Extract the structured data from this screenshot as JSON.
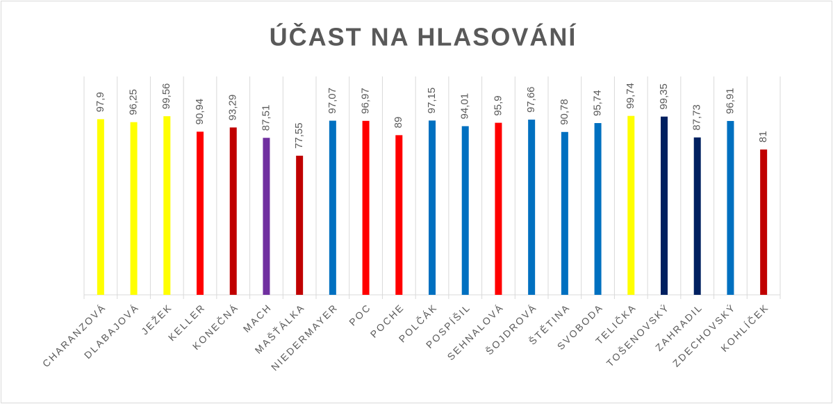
{
  "chart_data": {
    "type": "bar",
    "title": "ÚČAST NA HLASOVÁNÍ",
    "categories": [
      "CHARANZOVÁ",
      "DLABAJOVÁ",
      "JEŽEK",
      "KELLER",
      "KONEČNÁ",
      "MACH",
      "MAŠŤÁLKA",
      "NIEDERMAYER",
      "POC",
      "POCHE",
      "POLČÁK",
      "POSPÍŠIL",
      "SEHNALOVÁ",
      "ŠOJDROVÁ",
      "ŠTĚTINA",
      "SVOBODA",
      "TELIČKA",
      "TOŠENOVSKÝ",
      "ZAHRADIL",
      "ZDECHOVSKÝ",
      "KOHLÍČEK"
    ],
    "values": [
      97.9,
      96.25,
      99.56,
      90.94,
      93.29,
      87.51,
      77.55,
      97.07,
      96.97,
      89,
      97.15,
      94.01,
      95.9,
      97.66,
      90.78,
      95.74,
      99.74,
      99.35,
      87.73,
      96.91,
      81
    ],
    "value_labels": [
      "97,9",
      "96,25",
      "99,56",
      "90,94",
      "93,29",
      "87,51",
      "77,55",
      "97,07",
      "96,97",
      "89",
      "97,15",
      "94,01",
      "95,9",
      "97,66",
      "90,78",
      "95,74",
      "99,74",
      "99,35",
      "87,73",
      "96,91",
      "81"
    ],
    "colors": [
      "#ffff00",
      "#ffff00",
      "#ffff00",
      "#ff0000",
      "#c00000",
      "#7030a0",
      "#c00000",
      "#0070c0",
      "#ff0000",
      "#ff0000",
      "#0070c0",
      "#0070c0",
      "#ff0000",
      "#0070c0",
      "#0070c0",
      "#0070c0",
      "#ffff00",
      "#002060",
      "#002060",
      "#0070c0",
      "#c00000"
    ],
    "ylim": [
      0,
      100
    ]
  }
}
